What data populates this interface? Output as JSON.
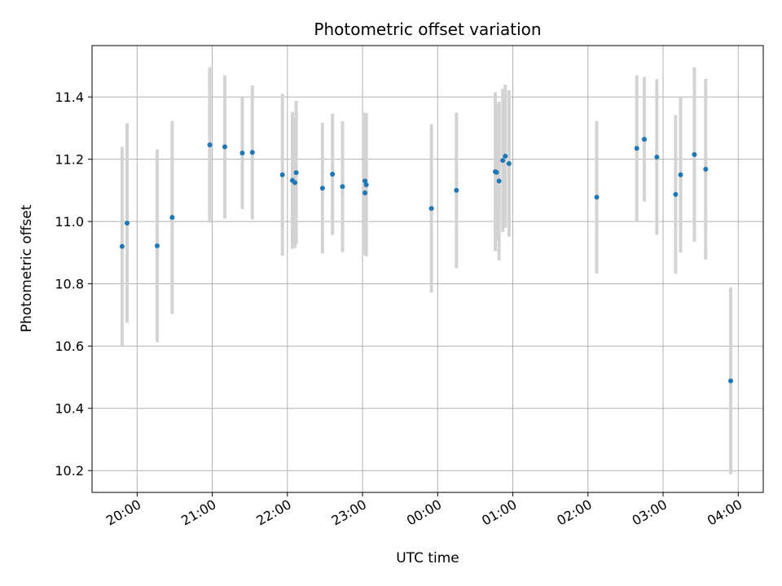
{
  "chart_data": {
    "type": "scatter",
    "title": "Photometric offset variation",
    "xlabel": "UTC time",
    "ylabel": "Photometric offset",
    "x_tick_labels": [
      "20:00",
      "21:00",
      "22:00",
      "23:00",
      "00:00",
      "01:00",
      "02:00",
      "03:00",
      "04:00"
    ],
    "y_tick_labels": [
      "10.2",
      "10.4",
      "10.6",
      "10.8",
      "11.0",
      "11.2",
      "11.4"
    ],
    "y_ticks": [
      10.2,
      10.4,
      10.6,
      10.8,
      11.0,
      11.2,
      11.4
    ],
    "ylim": [
      10.13,
      11.565
    ],
    "xlim": [
      "19:24",
      "04:20"
    ],
    "grid": true,
    "colors": {
      "points": "#1f77b4",
      "errorbars": "#d3d3d3",
      "grid": "#b0b0b0"
    },
    "points": [
      {
        "t": "19:48",
        "y": 10.92,
        "err": 0.32
      },
      {
        "t": "19:52",
        "y": 10.995,
        "err": 0.32
      },
      {
        "t": "20:16",
        "y": 10.922,
        "err": 0.31
      },
      {
        "t": "20:28",
        "y": 11.013,
        "err": 0.31
      },
      {
        "t": "20:58",
        "y": 11.246,
        "err": 0.25
      },
      {
        "t": "21:10",
        "y": 11.24,
        "err": 0.23
      },
      {
        "t": "21:24",
        "y": 11.22,
        "err": 0.18
      },
      {
        "t": "21:32",
        "y": 11.222,
        "err": 0.215
      },
      {
        "t": "21:56",
        "y": 11.15,
        "err": 0.26
      },
      {
        "t": "22:04",
        "y": 11.132,
        "err": 0.22
      },
      {
        "t": "22:06",
        "y": 11.125,
        "err": 0.21
      },
      {
        "t": "22:07",
        "y": 11.157,
        "err": 0.23
      },
      {
        "t": "22:28",
        "y": 11.107,
        "err": 0.21
      },
      {
        "t": "22:36",
        "y": 11.152,
        "err": 0.195
      },
      {
        "t": "22:44",
        "y": 11.112,
        "err": 0.21
      },
      {
        "t": "23:02",
        "y": 11.13,
        "err": 0.22
      },
      {
        "t": "23:02",
        "y": 11.092,
        "err": 0.2
      },
      {
        "t": "23:03",
        "y": 11.118,
        "err": 0.23
      },
      {
        "t": "23:55",
        "y": 11.042,
        "err": 0.27
      },
      {
        "t": "00:15",
        "y": 11.1,
        "err": 0.25
      },
      {
        "t": "00:46",
        "y": 11.16,
        "err": 0.255
      },
      {
        "t": "00:47",
        "y": 11.158,
        "err": 0.22
      },
      {
        "t": "00:49",
        "y": 11.13,
        "err": 0.255
      },
      {
        "t": "00:52",
        "y": 11.196,
        "err": 0.23
      },
      {
        "t": "00:54",
        "y": 11.21,
        "err": 0.23
      },
      {
        "t": "00:57",
        "y": 11.186,
        "err": 0.235
      },
      {
        "t": "02:07",
        "y": 11.078,
        "err": 0.245
      },
      {
        "t": "02:39",
        "y": 11.235,
        "err": 0.235
      },
      {
        "t": "02:45",
        "y": 11.264,
        "err": 0.2
      },
      {
        "t": "02:55",
        "y": 11.207,
        "err": 0.25
      },
      {
        "t": "03:10",
        "y": 11.087,
        "err": 0.255
      },
      {
        "t": "03:14",
        "y": 11.15,
        "err": 0.25
      },
      {
        "t": "03:25",
        "y": 11.215,
        "err": 0.28
      },
      {
        "t": "03:34",
        "y": 11.168,
        "err": 0.29
      },
      {
        "t": "03:54",
        "y": 10.488,
        "err": 0.3
      }
    ]
  }
}
